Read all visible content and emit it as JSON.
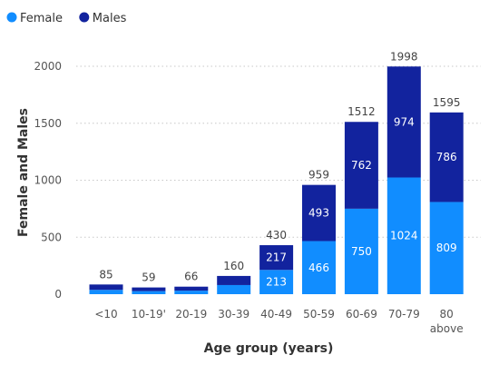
{
  "chart_data": {
    "type": "bar",
    "stacked": true,
    "categories": [
      "<10",
      "10-19'",
      "20-19",
      "30-39",
      "40-49",
      "50-59",
      "60-69",
      "70-79",
      "80\nabove"
    ],
    "series": [
      {
        "name": "Female",
        "color": "#118DFF",
        "values": [
          38,
          27,
          31,
          80,
          213,
          466,
          750,
          1024,
          809
        ]
      },
      {
        "name": "Males",
        "color": "#12239E",
        "values": [
          47,
          32,
          35,
          80,
          217,
          493,
          762,
          974,
          786
        ]
      }
    ],
    "totals": [
      85,
      59,
      66,
      160,
      430,
      959,
      1512,
      1998,
      1595
    ],
    "inner_labels": {
      "Female": [
        "",
        "",
        "",
        "",
        "213",
        "466",
        "750",
        "1024",
        "809"
      ],
      "Males": [
        "",
        "",
        "",
        "",
        "217",
        "493",
        "762",
        "974",
        "786"
      ]
    },
    "xlabel": "Age group (years)",
    "ylabel": "Female and Males",
    "ylim": [
      0,
      2000
    ],
    "yticks": [
      0,
      500,
      1000,
      1500,
      2000
    ],
    "grid": true,
    "legend_position": "top-left"
  }
}
